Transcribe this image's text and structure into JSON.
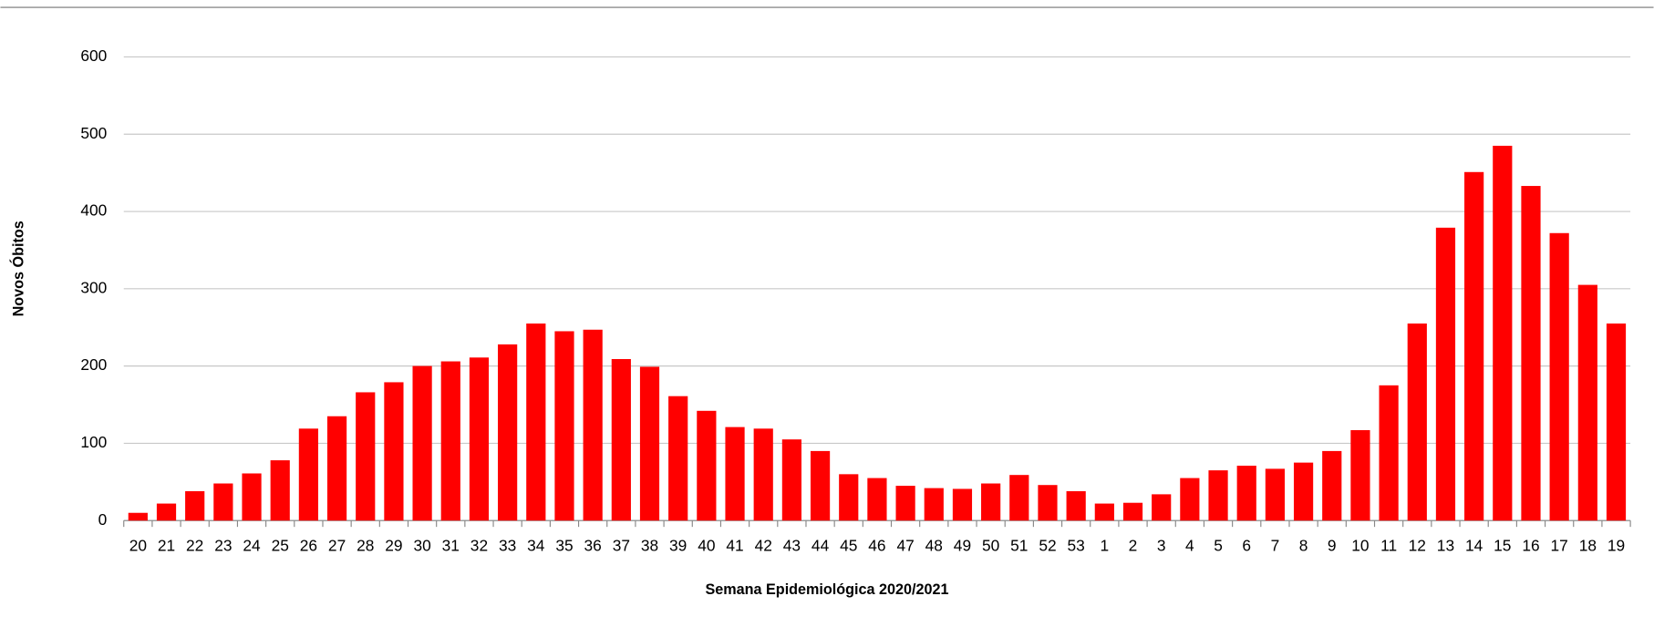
{
  "chart_data": {
    "type": "bar",
    "x_label": "Semana Epidemiológica 2020/2021",
    "y_label": "Novos Óbitos",
    "categories": [
      "20",
      "21",
      "22",
      "23",
      "24",
      "25",
      "26",
      "27",
      "28",
      "29",
      "30",
      "31",
      "32",
      "33",
      "34",
      "35",
      "36",
      "37",
      "38",
      "39",
      "40",
      "41",
      "42",
      "43",
      "44",
      "45",
      "46",
      "47",
      "48",
      "49",
      "50",
      "51",
      "52",
      "53",
      "1",
      "2",
      "3",
      "4",
      "5",
      "6",
      "7",
      "8",
      "9",
      "10",
      "11",
      "12",
      "13",
      "14",
      "15",
      "16",
      "17",
      "18",
      "19"
    ],
    "values": [
      10,
      22,
      38,
      48,
      61,
      78,
      119,
      135,
      166,
      179,
      200,
      206,
      211,
      228,
      255,
      245,
      247,
      209,
      199,
      161,
      142,
      121,
      119,
      105,
      90,
      60,
      55,
      45,
      42,
      41,
      48,
      59,
      46,
      38,
      22,
      23,
      34,
      55,
      65,
      71,
      67,
      75,
      90,
      117,
      175,
      255,
      379,
      451,
      485,
      433,
      372,
      305,
      255
    ],
    "color": "#ff0000",
    "ylim": [
      0,
      600
    ],
    "yticks": [
      0,
      100,
      200,
      300,
      400,
      500,
      600
    ],
    "grid": true
  }
}
